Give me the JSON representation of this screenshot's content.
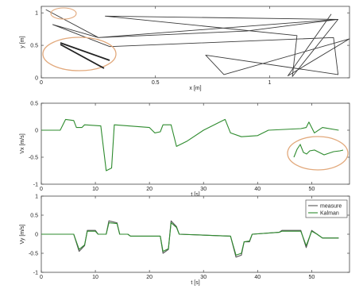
{
  "chart_data": [
    {
      "type": "line",
      "xlabel": "x [m]",
      "ylabel": "y [m]",
      "xlim": [
        0,
        1.35
      ],
      "ylim": [
        0,
        1.1
      ],
      "x_ticks": [
        0,
        0.5,
        1
      ],
      "x_tick_labels": [
        "0",
        "0.5",
        "1"
      ],
      "y_ticks": [
        0,
        0.5,
        1
      ],
      "y_tick_labels": [
        "0",
        "0.5",
        "1"
      ],
      "series": [
        {
          "color": "#3b3b3b",
          "points": [
            [
              0.02,
              1.05
            ],
            [
              0.25,
              0.62
            ],
            [
              0.9,
              0.72
            ],
            [
              1.3,
              0.9
            ],
            [
              0.28,
              0.95
            ],
            [
              1.12,
              0.65
            ],
            [
              1.1,
              0.02
            ],
            [
              1.3,
              0.9
            ],
            [
              0.25,
              0.62
            ],
            [
              0.05,
              0.82
            ],
            [
              0.3,
              0.48
            ],
            [
              1.28,
              0.62
            ],
            [
              1.3,
              0.05
            ],
            [
              0.72,
              0.35
            ],
            [
              0.8,
              0.05
            ],
            [
              1.35,
              0.6
            ],
            [
              1.08,
              0.03
            ],
            [
              1.27,
              0.98
            ]
          ]
        }
      ],
      "annotations": [
        "inset-ellipse-left"
      ]
    },
    {
      "type": "line",
      "xlabel": "t [s]",
      "ylabel": "Vx [m/s]",
      "xlim": [
        0,
        57
      ],
      "ylim": [
        -1,
        0.5
      ],
      "x_ticks": [
        0,
        10,
        20,
        30,
        40,
        50
      ],
      "x_tick_labels": [
        "0",
        "10",
        "20",
        "30",
        "40",
        "50"
      ],
      "y_ticks": [
        0.5,
        0,
        -0.5,
        -1
      ],
      "y_tick_labels": [
        "0.5",
        "0",
        "-0.5",
        "-1"
      ],
      "series": [
        {
          "color": "#2e8b2e",
          "points": [
            [
              0,
              0.0
            ],
            [
              3.5,
              0.0
            ],
            [
              4.5,
              0.2
            ],
            [
              6,
              0.18
            ],
            [
              6.5,
              0.05
            ],
            [
              7.5,
              0.05
            ],
            [
              8,
              0.1
            ],
            [
              11,
              0.08
            ],
            [
              12,
              -0.75
            ],
            [
              13,
              -0.7
            ],
            [
              13.5,
              0.1
            ],
            [
              20,
              0.05
            ],
            [
              21,
              -0.05
            ],
            [
              22,
              -0.03
            ],
            [
              22.5,
              0.1
            ],
            [
              24,
              0.1
            ],
            [
              25,
              -0.3
            ],
            [
              27,
              -0.2
            ],
            [
              30,
              0.0
            ],
            [
              33,
              0.15
            ],
            [
              34,
              0.2
            ],
            [
              35,
              -0.05
            ],
            [
              37,
              -0.12
            ],
            [
              40,
              -0.1
            ],
            [
              42,
              0.0
            ],
            [
              48,
              0.03
            ],
            [
              49,
              0.05
            ],
            [
              49.5,
              0.15
            ],
            [
              50.5,
              -0.05
            ],
            [
              52,
              0.05
            ],
            [
              55,
              0.0
            ]
          ]
        }
      ],
      "annotations": [
        "inset-ellipse-right"
      ]
    },
    {
      "type": "line",
      "xlabel": "t [s]",
      "ylabel": "Vy [m/s]",
      "xlim": [
        0,
        57
      ],
      "ylim": [
        -1,
        1
      ],
      "x_ticks": [
        0,
        10,
        20,
        30,
        40,
        50
      ],
      "x_tick_labels": [
        "0",
        "10",
        "20",
        "30",
        "40",
        "50"
      ],
      "y_ticks": [
        1,
        0.5,
        0,
        -0.5,
        -1
      ],
      "y_tick_labels": [
        "1",
        "0.5",
        "0",
        "-0.5",
        "-1"
      ],
      "legend": {
        "placement": "top-right",
        "entries": [
          "measure",
          "Kalman"
        ]
      },
      "series": [
        {
          "name": "measure",
          "color": "#555555",
          "points": [
            [
              0,
              0.0
            ],
            [
              6,
              0.0
            ],
            [
              7,
              -0.45
            ],
            [
              8,
              -0.3
            ],
            [
              8.5,
              0.1
            ],
            [
              10,
              0.1
            ],
            [
              10.5,
              0.0
            ],
            [
              12,
              0.0
            ],
            [
              12.5,
              0.35
            ],
            [
              14,
              0.3
            ],
            [
              14.5,
              0.0
            ],
            [
              16,
              0.0
            ],
            [
              16.5,
              -0.05
            ],
            [
              22,
              -0.05
            ],
            [
              22.5,
              -0.5
            ],
            [
              23.5,
              -0.4
            ],
            [
              24,
              0.35
            ],
            [
              25,
              0.2
            ],
            [
              25.5,
              0.0
            ],
            [
              35,
              -0.05
            ],
            [
              36,
              -0.6
            ],
            [
              37,
              -0.55
            ],
            [
              37.5,
              -0.2
            ],
            [
              38.5,
              -0.2
            ],
            [
              39,
              0.0
            ],
            [
              44,
              0.05
            ],
            [
              44.5,
              0.1
            ],
            [
              48,
              0.1
            ],
            [
              49,
              -0.35
            ],
            [
              50,
              0.1
            ],
            [
              51,
              0.0
            ],
            [
              52,
              -0.1
            ],
            [
              55,
              -0.1
            ]
          ]
        },
        {
          "name": "Kalman",
          "color": "#2e8b2e",
          "points": [
            [
              0,
              0.0
            ],
            [
              6,
              0.0
            ],
            [
              7,
              -0.4
            ],
            [
              8,
              -0.28
            ],
            [
              8.5,
              0.08
            ],
            [
              10,
              0.08
            ],
            [
              10.5,
              0.0
            ],
            [
              12,
              0.0
            ],
            [
              12.5,
              0.3
            ],
            [
              14,
              0.28
            ],
            [
              14.5,
              0.0
            ],
            [
              16,
              0.0
            ],
            [
              16.5,
              -0.05
            ],
            [
              22,
              -0.05
            ],
            [
              22.5,
              -0.45
            ],
            [
              23.5,
              -0.38
            ],
            [
              24,
              0.3
            ],
            [
              25,
              0.18
            ],
            [
              25.5,
              0.0
            ],
            [
              35,
              -0.05
            ],
            [
              36,
              -0.55
            ],
            [
              37,
              -0.5
            ],
            [
              37.5,
              -0.2
            ],
            [
              38.5,
              -0.18
            ],
            [
              39,
              0.0
            ],
            [
              44,
              0.05
            ],
            [
              44.5,
              0.08
            ],
            [
              48,
              0.08
            ],
            [
              49,
              -0.3
            ],
            [
              50,
              0.08
            ],
            [
              51,
              0.0
            ],
            [
              52,
              -0.1
            ],
            [
              55,
              -0.1
            ]
          ]
        }
      ]
    }
  ]
}
